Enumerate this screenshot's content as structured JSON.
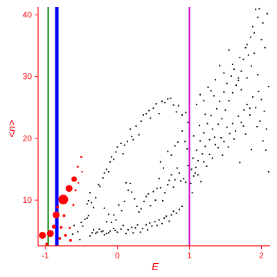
{
  "chart_data": {
    "type": "scatter",
    "title": "",
    "xlabel": "E",
    "ylabel": "<n>",
    "xlim": [
      -1.1,
      2.12
    ],
    "ylim": [
      2.6,
      41.3
    ],
    "xticks": [
      -1,
      0,
      1,
      2
    ],
    "xtick_labels": [
      "-1",
      "0",
      "1",
      "2"
    ],
    "yticks": [
      10,
      20,
      30,
      40
    ],
    "ytick_labels": [
      "10",
      "20",
      "30",
      "40"
    ],
    "grid": false,
    "legend": "none",
    "colors": {
      "axes": "#ff0000",
      "small_points": "#000000",
      "large_points": "#ff0000",
      "line_green": "#008000",
      "line_blue": "#0000ff",
      "line_magenta": "#cc00cc"
    },
    "vertical_lines": [
      {
        "x": -0.96,
        "color": "#008000",
        "weight": "thin"
      },
      {
        "x": -0.84,
        "color": "#0000ff",
        "weight": "thick"
      },
      {
        "x": 1.0,
        "color": "#cc00cc",
        "weight": "thin"
      }
    ],
    "red_points": [
      {
        "x": -1.04,
        "y": 4.3,
        "size": 5
      },
      {
        "x": -0.98,
        "y": 2.9,
        "size": 2
      },
      {
        "x": -0.93,
        "y": 4.6,
        "size": 5
      },
      {
        "x": -0.85,
        "y": 7.6,
        "size": 5
      },
      {
        "x": -0.8,
        "y": 3.8,
        "size": 2
      },
      {
        "x": -0.75,
        "y": 10.1,
        "size": 7
      },
      {
        "x": -0.72,
        "y": 4.3,
        "size": 2
      },
      {
        "x": -0.67,
        "y": 11.9,
        "size": 5
      },
      {
        "x": -0.65,
        "y": 3.5,
        "size": 2
      },
      {
        "x": -0.6,
        "y": 13.4,
        "size": 4
      },
      {
        "x": -0.78,
        "y": 5.6,
        "size": 2
      },
      {
        "x": -0.88,
        "y": 5.7,
        "size": 3
      },
      {
        "x": -0.83,
        "y": 8.9,
        "size": 2
      },
      {
        "x": -0.74,
        "y": 7.5,
        "size": 2
      },
      {
        "x": -0.66,
        "y": 5.5,
        "size": 1.5
      },
      {
        "x": -0.61,
        "y": 9.2,
        "size": 1.5
      },
      {
        "x": -0.58,
        "y": 11.6,
        "size": 1.5
      },
      {
        "x": -0.55,
        "y": 15.4,
        "size": 1.5
      },
      {
        "x": -0.5,
        "y": 17.0,
        "size": 1.5
      },
      {
        "x": -0.54,
        "y": 12.8,
        "size": 1.2
      },
      {
        "x": -0.49,
        "y": 14.6,
        "size": 1.2
      }
    ],
    "black_points": [
      [
        -0.62,
        4.5
      ],
      [
        -0.6,
        5.9
      ],
      [
        -0.55,
        4.9
      ],
      [
        -0.52,
        3.6
      ],
      [
        -0.5,
        6.4
      ],
      [
        -0.48,
        5.8
      ],
      [
        -0.45,
        6.9
      ],
      [
        -0.42,
        7.1
      ],
      [
        -0.4,
        7.5
      ],
      [
        -0.38,
        4.2
      ],
      [
        -0.35,
        4.7
      ],
      [
        -0.33,
        5.2
      ],
      [
        -0.3,
        4.6
      ],
      [
        -0.28,
        4.8
      ],
      [
        -0.25,
        5.3
      ],
      [
        -0.22,
        4.9
      ],
      [
        -0.2,
        5.0
      ],
      [
        -0.18,
        4.4
      ],
      [
        -0.15,
        4.6
      ],
      [
        -0.12,
        4.7
      ],
      [
        -0.1,
        5.0
      ],
      [
        -0.05,
        5.4
      ],
      [
        -0.03,
        5.1
      ],
      [
        0.0,
        4.8
      ],
      [
        0.05,
        5.3
      ],
      [
        0.08,
        5.9
      ],
      [
        0.12,
        4.6
      ],
      [
        0.15,
        5.2
      ],
      [
        0.2,
        5.6
      ],
      [
        0.22,
        4.7
      ],
      [
        0.25,
        5.5
      ],
      [
        0.28,
        6.0
      ],
      [
        0.32,
        4.8
      ],
      [
        0.35,
        5.4
      ],
      [
        0.4,
        6.0
      ],
      [
        0.42,
        5.2
      ],
      [
        0.45,
        6.3
      ],
      [
        0.48,
        5.8
      ],
      [
        0.52,
        6.5
      ],
      [
        0.55,
        5.9
      ],
      [
        0.58,
        6.8
      ],
      [
        0.62,
        6.2
      ],
      [
        0.65,
        7.1
      ],
      [
        0.68,
        7.4
      ],
      [
        0.72,
        6.6
      ],
      [
        0.75,
        7.6
      ],
      [
        0.78,
        8.2
      ],
      [
        0.82,
        7.9
      ],
      [
        0.86,
        8.5
      ],
      [
        0.9,
        9.0
      ],
      [
        -0.42,
        9.4
      ],
      [
        -0.4,
        9.9
      ],
      [
        -0.38,
        11.2
      ],
      [
        -0.36,
        9.6
      ],
      [
        -0.33,
        8.8
      ],
      [
        -0.3,
        10.4
      ],
      [
        -0.26,
        12.5
      ],
      [
        -0.24,
        12.2
      ],
      [
        -0.2,
        13.6
      ],
      [
        -0.18,
        14.4
      ],
      [
        -0.15,
        15.0
      ],
      [
        -0.12,
        14.6
      ],
      [
        -0.1,
        16.2
      ],
      [
        -0.08,
        17.0
      ],
      [
        -0.05,
        16.6
      ],
      [
        -0.02,
        17.8
      ],
      [
        0.0,
        18.6
      ],
      [
        0.05,
        19.2
      ],
      [
        0.08,
        17.5
      ],
      [
        0.1,
        18.9
      ],
      [
        0.14,
        19.5
      ],
      [
        0.18,
        21.5
      ],
      [
        0.2,
        20.3
      ],
      [
        0.22,
        19.8
      ],
      [
        0.26,
        22.0
      ],
      [
        0.3,
        20.6
      ],
      [
        0.33,
        22.8
      ],
      [
        0.36,
        23.8
      ],
      [
        0.4,
        24.0
      ],
      [
        0.44,
        24.5
      ],
      [
        0.46,
        23.3
      ],
      [
        0.5,
        24.9
      ],
      [
        0.54,
        25.6
      ],
      [
        0.58,
        24.0
      ],
      [
        0.62,
        26.0
      ],
      [
        0.66,
        25.8
      ],
      [
        0.7,
        26.4
      ],
      [
        0.74,
        26.5
      ],
      [
        0.78,
        25.4
      ],
      [
        0.82,
        24.3
      ],
      [
        0.85,
        25.3
      ],
      [
        0.9,
        23.8
      ],
      [
        0.95,
        24.2
      ],
      [
        0.98,
        22.6
      ],
      [
        -0.18,
        8.7
      ],
      [
        -0.15,
        6.5
      ],
      [
        -0.12,
        7.7
      ],
      [
        -0.08,
        6.4
      ],
      [
        -0.05,
        7.6
      ],
      [
        -0.02,
        6.8
      ],
      [
        0.02,
        9.2
      ],
      [
        0.06,
        8.3
      ],
      [
        0.1,
        9.8
      ],
      [
        0.12,
        12.8
      ],
      [
        0.15,
        11.6
      ],
      [
        0.18,
        12.7
      ],
      [
        0.2,
        11.3
      ],
      [
        0.24,
        10.2
      ],
      [
        0.27,
        9.0
      ],
      [
        0.3,
        8.1
      ],
      [
        0.33,
        8.6
      ],
      [
        0.37,
        9.8
      ],
      [
        0.4,
        10.6
      ],
      [
        0.43,
        11.0
      ],
      [
        0.46,
        9.1
      ],
      [
        0.5,
        11.4
      ],
      [
        0.53,
        10.0
      ],
      [
        0.55,
        11.9
      ],
      [
        0.58,
        13.5
      ],
      [
        0.6,
        12.0
      ],
      [
        0.63,
        9.9
      ],
      [
        0.66,
        11.2
      ],
      [
        0.7,
        12.5
      ],
      [
        0.72,
        13.2
      ],
      [
        0.75,
        14.1
      ],
      [
        0.78,
        12.1
      ],
      [
        0.8,
        13.3
      ],
      [
        0.83,
        15.2
      ],
      [
        0.86,
        14.4
      ],
      [
        0.88,
        13.1
      ],
      [
        0.92,
        13.5
      ],
      [
        0.95,
        12.9
      ],
      [
        0.98,
        15.6
      ],
      [
        0.6,
        16.2
      ],
      [
        0.64,
        15.2
      ],
      [
        0.7,
        17.9
      ],
      [
        0.75,
        17.3
      ],
      [
        0.8,
        18.8
      ],
      [
        0.84,
        19.4
      ],
      [
        0.9,
        21.2
      ],
      [
        0.94,
        19.5
      ],
      [
        0.97,
        18.3
      ],
      [
        1.03,
        15.0
      ],
      [
        1.05,
        16.8
      ],
      [
        1.08,
        14.4
      ],
      [
        1.1,
        18.1
      ],
      [
        1.12,
        16.4
      ],
      [
        1.15,
        19.6
      ],
      [
        1.18,
        17.5
      ],
      [
        1.2,
        20.9
      ],
      [
        1.22,
        18.7
      ],
      [
        1.25,
        22.4
      ],
      [
        1.28,
        19.8
      ],
      [
        1.3,
        23.7
      ],
      [
        1.32,
        21.5
      ],
      [
        1.35,
        20.2
      ],
      [
        1.38,
        24.8
      ],
      [
        1.4,
        22.3
      ],
      [
        1.42,
        26.0
      ],
      [
        1.45,
        23.2
      ],
      [
        1.48,
        27.5
      ],
      [
        1.5,
        24.6
      ],
      [
        1.52,
        28.9
      ],
      [
        1.55,
        26.1
      ],
      [
        1.58,
        30.1
      ],
      [
        1.6,
        27.4
      ],
      [
        1.62,
        31.2
      ],
      [
        1.65,
        28.6
      ],
      [
        1.68,
        29.8
      ],
      [
        1.7,
        33.1
      ],
      [
        1.72,
        30.9
      ],
      [
        1.75,
        32.8
      ],
      [
        1.78,
        34.7
      ],
      [
        1.8,
        35.2
      ],
      [
        1.82,
        33.5
      ],
      [
        1.85,
        36.4
      ],
      [
        1.88,
        38.1
      ],
      [
        1.9,
        37.1
      ],
      [
        1.92,
        40.9
      ],
      [
        1.95,
        39.6
      ],
      [
        1.97,
        41.0
      ],
      [
        2.0,
        36.0
      ],
      [
        2.02,
        38.7
      ],
      [
        2.05,
        34.7
      ],
      [
        2.08,
        40.2
      ],
      [
        2.1,
        28.4
      ],
      [
        1.02,
        12.7
      ],
      [
        1.04,
        11.2
      ],
      [
        1.06,
        13.9
      ],
      [
        1.09,
        15.3
      ],
      [
        1.12,
        14.1
      ],
      [
        1.16,
        13.0
      ],
      [
        1.2,
        16.2
      ],
      [
        1.24,
        15.5
      ],
      [
        1.28,
        17.4
      ],
      [
        1.32,
        16.8
      ],
      [
        1.36,
        19.0
      ],
      [
        1.4,
        18.5
      ],
      [
        1.44,
        20.1
      ],
      [
        1.48,
        19.5
      ],
      [
        1.52,
        21.8
      ],
      [
        1.56,
        20.8
      ],
      [
        1.6,
        22.4
      ],
      [
        1.64,
        21.2
      ],
      [
        1.68,
        23.6
      ],
      [
        1.72,
        22.6
      ],
      [
        1.76,
        24.6
      ],
      [
        1.8,
        25.5
      ],
      [
        1.84,
        23.8
      ],
      [
        1.88,
        26.7
      ],
      [
        1.92,
        25.0
      ],
      [
        1.96,
        27.6
      ],
      [
        2.0,
        26.3
      ],
      [
        2.04,
        24.4
      ],
      [
        2.07,
        21.5
      ],
      [
        2.1,
        14.6
      ],
      [
        1.1,
        25.5
      ],
      [
        1.15,
        27.1
      ],
      [
        1.2,
        26.1
      ],
      [
        1.26,
        28.3
      ],
      [
        1.3,
        27.7
      ],
      [
        1.36,
        29.5
      ],
      [
        1.42,
        31.8
      ],
      [
        1.48,
        30.6
      ],
      [
        1.55,
        34.3
      ],
      [
        1.6,
        32.0
      ],
      [
        1.68,
        29.4
      ],
      [
        1.72,
        27.9
      ],
      [
        1.8,
        29.8
      ],
      [
        1.86,
        31.7
      ],
      [
        1.9,
        33.8
      ],
      [
        1.95,
        30.3
      ],
      [
        1.98,
        22.8
      ],
      [
        2.02,
        19.6
      ],
      [
        2.06,
        18.1
      ],
      [
        1.06,
        20.4
      ],
      [
        1.14,
        22.1
      ],
      [
        1.22,
        23.9
      ],
      [
        1.34,
        26.9
      ],
      [
        1.46,
        17.3
      ],
      [
        1.54,
        18.6
      ],
      [
        1.62,
        19.9
      ],
      [
        1.7,
        16.1
      ],
      [
        1.78,
        20.7
      ],
      [
        1.86,
        18.2
      ],
      [
        1.94,
        21.9
      ],
      [
        1.75,
        22.0
      ],
      [
        1.84,
        24.9
      ]
    ]
  }
}
